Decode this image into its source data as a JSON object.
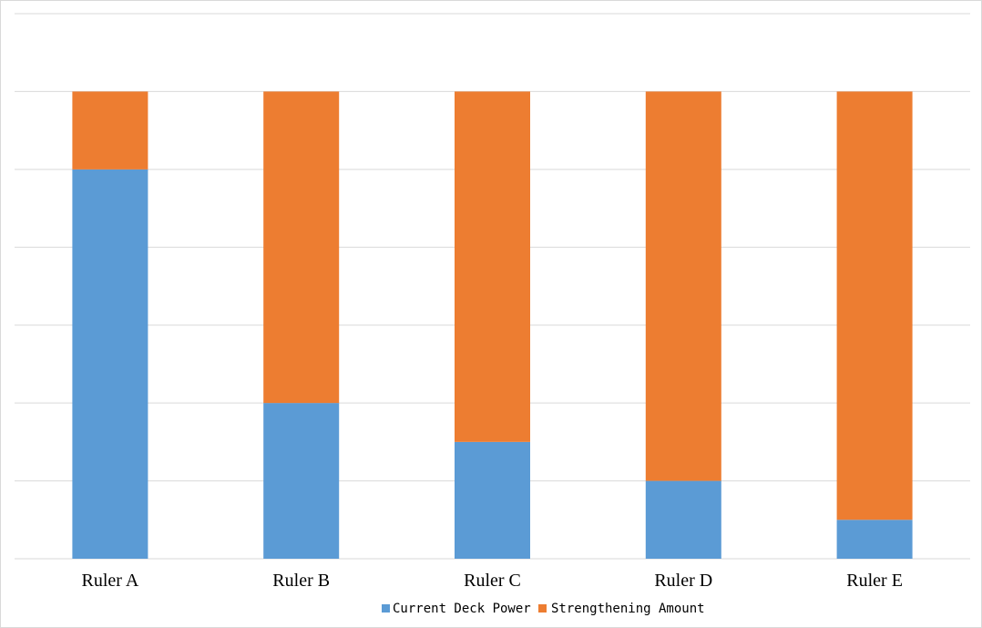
{
  "chart_data": {
    "type": "bar",
    "stacked": true,
    "categories": [
      "Ruler A",
      "Ruler B",
      "Ruler C",
      "Ruler D",
      "Ruler E"
    ],
    "series": [
      {
        "name": "Current Deck Power",
        "values": [
          5,
          2,
          1.5,
          1,
          0.5
        ]
      },
      {
        "name": "Strengthening Amount",
        "values": [
          1,
          4,
          4.5,
          5,
          5.5
        ]
      }
    ],
    "ylim": [
      0,
      7
    ],
    "grid": true,
    "legend_position": "bottom",
    "title": "",
    "xlabel": "",
    "ylabel": ""
  },
  "colors": {
    "Current Deck Power": "#5b9bd5",
    "Strengthening Amount": "#ed7d31",
    "gridline": "#d9d9d9"
  }
}
